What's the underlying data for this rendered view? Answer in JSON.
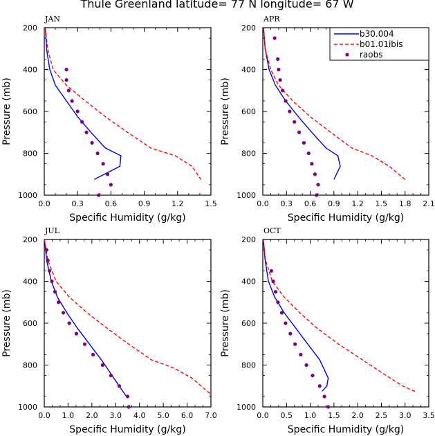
{
  "title": "Thule Greenland  latitude= 77 N longitude= 67 W",
  "legend": {
    "entries": [
      {
        "label": "b30.004",
        "color": "#0000dd",
        "style": "solid"
      },
      {
        "label": "b01.01ibis",
        "color": "#ff0000",
        "style": "dashed"
      },
      {
        "label": "raobs",
        "color": "#800080",
        "style": "dots"
      }
    ]
  },
  "chart_data": [
    {
      "type": "line",
      "panel": "JAN",
      "xlabel": "Specific Humidity (g/kg)",
      "ylabel": "Pressure (mb)",
      "xlim": [
        0,
        1.5
      ],
      "ylim": [
        1000,
        200
      ],
      "x_ticks": [
        "0.0",
        "0.3",
        "0.6",
        "0.9",
        "1.2",
        "1.5"
      ],
      "y_ticks": [
        "200",
        "400",
        "600",
        "800",
        "1000"
      ],
      "series": [
        {
          "name": "b30.004",
          "points": [
            [
              0.01,
              200
            ],
            [
              0.02,
              300
            ],
            [
              0.05,
              400
            ],
            [
              0.1,
              475
            ],
            [
              0.2,
              550
            ],
            [
              0.3,
              625
            ],
            [
              0.42,
              700
            ],
            [
              0.55,
              775
            ],
            [
              0.69,
              812
            ],
            [
              0.68,
              862
            ],
            [
              0.45,
              925
            ]
          ]
        },
        {
          "name": "b01.01ibis",
          "points": [
            [
              0.01,
              200
            ],
            [
              0.03,
              300
            ],
            [
              0.08,
              400
            ],
            [
              0.2,
              475
            ],
            [
              0.37,
              550
            ],
            [
              0.55,
              625
            ],
            [
              0.75,
              700
            ],
            [
              0.96,
              775
            ],
            [
              1.18,
              812
            ],
            [
              1.33,
              862
            ],
            [
              1.41,
              925
            ]
          ]
        },
        {
          "name": "raobs",
          "points": [
            [
              0.2,
              400
            ],
            [
              0.2,
              450
            ],
            [
              0.22,
              500
            ],
            [
              0.25,
              550
            ],
            [
              0.3,
              600
            ],
            [
              0.34,
              650
            ],
            [
              0.38,
              700
            ],
            [
              0.43,
              750
            ],
            [
              0.48,
              800
            ],
            [
              0.53,
              850
            ],
            [
              0.57,
              900
            ],
            [
              0.6,
              950
            ],
            [
              0.49,
              1000
            ]
          ]
        }
      ]
    },
    {
      "type": "line",
      "panel": "APR",
      "xlabel": "Specific Humidity (g/kg)",
      "ylabel": "Pressure (mb)",
      "xlim": [
        0,
        2.1
      ],
      "ylim": [
        1000,
        200
      ],
      "x_ticks": [
        "0.0",
        "0.3",
        "0.6",
        "0.9",
        "1.2",
        "1.5",
        "1.8",
        "2.1"
      ],
      "y_ticks": [
        "200",
        "400",
        "600",
        "800",
        "1000"
      ],
      "series": [
        {
          "name": "b30.004",
          "points": [
            [
              0.01,
              200
            ],
            [
              0.03,
              300
            ],
            [
              0.08,
              400
            ],
            [
              0.16,
              475
            ],
            [
              0.29,
              550
            ],
            [
              0.45,
              625
            ],
            [
              0.62,
              700
            ],
            [
              0.8,
              775
            ],
            [
              0.95,
              812
            ],
            [
              0.98,
              862
            ],
            [
              0.9,
              925
            ]
          ]
        },
        {
          "name": "b01.01ibis",
          "points": [
            [
              0.01,
              200
            ],
            [
              0.03,
              300
            ],
            [
              0.1,
              400
            ],
            [
              0.2,
              475
            ],
            [
              0.38,
              550
            ],
            [
              0.6,
              625
            ],
            [
              0.86,
              700
            ],
            [
              1.13,
              775
            ],
            [
              1.38,
              812
            ],
            [
              1.6,
              862
            ],
            [
              1.8,
              925
            ]
          ]
        },
        {
          "name": "raobs",
          "points": [
            [
              0.15,
              250
            ],
            [
              0.19,
              350
            ],
            [
              0.2,
              400
            ],
            [
              0.22,
              450
            ],
            [
              0.25,
              500
            ],
            [
              0.29,
              550
            ],
            [
              0.34,
              600
            ],
            [
              0.4,
              650
            ],
            [
              0.46,
              700
            ],
            [
              0.52,
              750
            ],
            [
              0.58,
              800
            ],
            [
              0.62,
              850
            ],
            [
              0.66,
              900
            ],
            [
              0.7,
              950
            ],
            [
              0.68,
              1000
            ]
          ]
        }
      ]
    },
    {
      "type": "line",
      "panel": "JUL",
      "xlabel": "Specific Humidity (g/kg)",
      "ylabel": "Pressure (mb)",
      "xlim": [
        0,
        7
      ],
      "ylim": [
        1000,
        200
      ],
      "x_ticks": [
        "0.0",
        "1.0",
        "2.0",
        "3.0",
        "4.0",
        "5.0",
        "6.0",
        "7.0"
      ],
      "y_ticks": [
        "200",
        "400",
        "600",
        "800",
        "1000"
      ],
      "series": [
        {
          "name": "b30.004",
          "points": [
            [
              0.01,
              200
            ],
            [
              0.1,
              300
            ],
            [
              0.3,
              400
            ],
            [
              0.55,
              475
            ],
            [
              0.95,
              550
            ],
            [
              1.4,
              625
            ],
            [
              1.9,
              700
            ],
            [
              2.4,
              775
            ],
            [
              2.85,
              850
            ],
            [
              3.15,
              900
            ],
            [
              3.45,
              950
            ]
          ]
        },
        {
          "name": "b01.01ibis",
          "points": [
            [
              0.01,
              200
            ],
            [
              0.15,
              300
            ],
            [
              0.5,
              400
            ],
            [
              1.05,
              475
            ],
            [
              1.8,
              550
            ],
            [
              2.65,
              625
            ],
            [
              3.55,
              700
            ],
            [
              4.5,
              775
            ],
            [
              5.4,
              812
            ],
            [
              6.2,
              862
            ],
            [
              7.0,
              940
            ]
          ]
        },
        {
          "name": "raobs",
          "points": [
            [
              0.1,
              250
            ],
            [
              0.15,
              300
            ],
            [
              0.22,
              350
            ],
            [
              0.32,
              400
            ],
            [
              0.45,
              450
            ],
            [
              0.6,
              500
            ],
            [
              0.8,
              550
            ],
            [
              1.05,
              600
            ],
            [
              1.35,
              650
            ],
            [
              1.7,
              700
            ],
            [
              2.05,
              750
            ],
            [
              2.45,
              800
            ],
            [
              2.8,
              850
            ],
            [
              3.15,
              900
            ],
            [
              3.5,
              950
            ],
            [
              3.55,
              1000
            ]
          ]
        }
      ]
    },
    {
      "type": "line",
      "panel": "OCT",
      "xlabel": "Specific Humidity (g/kg)",
      "ylabel": "Pressure (mb)",
      "xlim": [
        0,
        3.5
      ],
      "ylim": [
        1000,
        200
      ],
      "x_ticks": [
        "0.0",
        "0.5",
        "1.0",
        "1.5",
        "2.0",
        "2.5",
        "3.0",
        "3.5"
      ],
      "y_ticks": [
        "200",
        "400",
        "600",
        "800",
        "1000"
      ],
      "series": [
        {
          "name": "b30.004",
          "points": [
            [
              0.01,
              200
            ],
            [
              0.05,
              300
            ],
            [
              0.12,
              400
            ],
            [
              0.25,
              475
            ],
            [
              0.45,
              550
            ],
            [
              0.7,
              625
            ],
            [
              0.95,
              700
            ],
            [
              1.2,
              775
            ],
            [
              1.38,
              862
            ],
            [
              1.35,
              900
            ],
            [
              1.25,
              925
            ]
          ]
        },
        {
          "name": "b01.01ibis",
          "points": [
            [
              0.01,
              200
            ],
            [
              0.06,
              300
            ],
            [
              0.2,
              400
            ],
            [
              0.45,
              475
            ],
            [
              0.78,
              550
            ],
            [
              1.15,
              625
            ],
            [
              1.6,
              700
            ],
            [
              2.1,
              775
            ],
            [
              2.6,
              850
            ],
            [
              2.95,
              900
            ],
            [
              3.25,
              930
            ]
          ]
        },
        {
          "name": "raobs",
          "points": [
            [
              0.18,
              350
            ],
            [
              0.22,
              400
            ],
            [
              0.27,
              450
            ],
            [
              0.32,
              500
            ],
            [
              0.4,
              550
            ],
            [
              0.48,
              600
            ],
            [
              0.58,
              650
            ],
            [
              0.68,
              700
            ],
            [
              0.8,
              750
            ],
            [
              0.92,
              800
            ],
            [
              1.05,
              850
            ],
            [
              1.2,
              900
            ],
            [
              1.3,
              950
            ],
            [
              1.38,
              1000
            ]
          ]
        }
      ]
    }
  ]
}
